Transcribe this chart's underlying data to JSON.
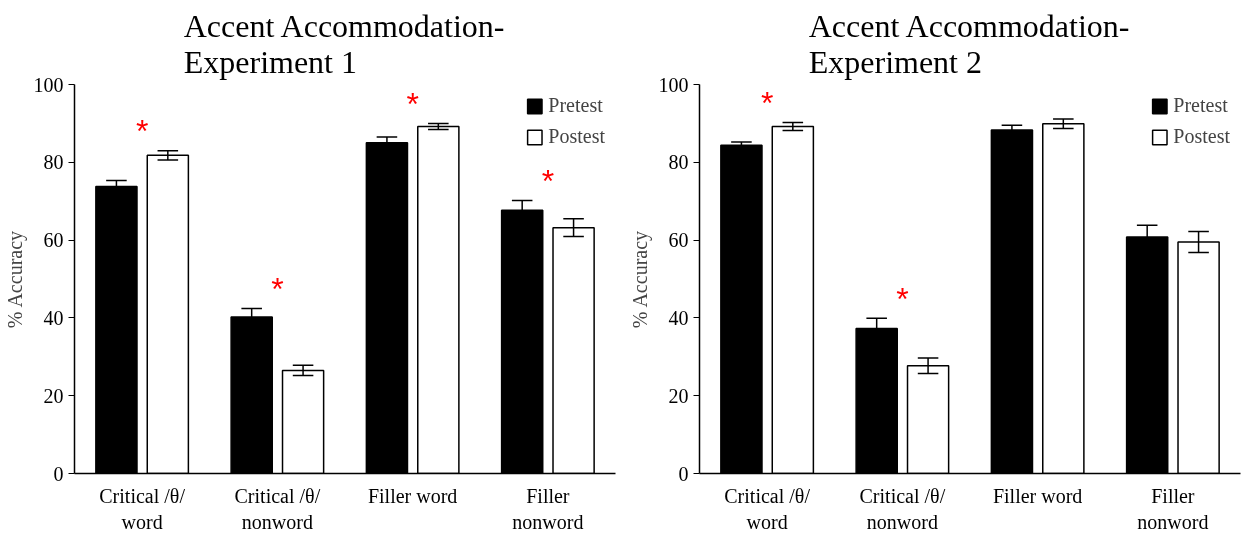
{
  "chart_data": [
    {
      "type": "bar",
      "title": "Accent Accommodation-\nExperiment 1",
      "ylabel": "% Accuracy",
      "categories": [
        "Critical /θ/\nword",
        "Critical /θ/\nnonword",
        "Filler word",
        "Filler\nnonword"
      ],
      "series": [
        {
          "name": "Pretest",
          "color": "#000000",
          "values": [
            73.8,
            40.2,
            85.0,
            67.7
          ],
          "errors": [
            1.5,
            2.2,
            1.5,
            2.5
          ]
        },
        {
          "name": "Postest",
          "color": "#ffffff",
          "values": [
            81.8,
            26.5,
            89.2,
            63.2
          ],
          "errors": [
            1.2,
            1.3,
            0.8,
            2.3
          ]
        }
      ],
      "ylim": [
        0,
        100
      ],
      "yticks": [
        0,
        20,
        40,
        60,
        80,
        100
      ],
      "grid": false,
      "legend": "top right",
      "annotations": [
        "*",
        "*",
        "*",
        "*"
      ]
    },
    {
      "type": "bar",
      "title": "Accent Accommodation-\nExperiment 2",
      "ylabel": "% Accuracy",
      "categories": [
        "Critical /θ/\nword",
        "Critical /θ/\nnonword",
        "Filler word",
        "Filler\nnonword"
      ],
      "series": [
        {
          "name": "Pretest",
          "color": "#000000",
          "values": [
            84.4,
            37.3,
            88.3,
            60.8
          ],
          "errors": [
            0.8,
            2.6,
            1.2,
            3.0
          ]
        },
        {
          "name": "Postest",
          "color": "#ffffff",
          "values": [
            89.2,
            27.7,
            89.9,
            59.5
          ],
          "errors": [
            1.0,
            2.0,
            1.2,
            2.7
          ]
        }
      ],
      "ylim": [
        0,
        100
      ],
      "yticks": [
        0,
        20,
        40,
        60,
        80,
        100
      ],
      "grid": false,
      "legend": "top right",
      "annotations": [
        "*",
        "*"
      ]
    }
  ]
}
